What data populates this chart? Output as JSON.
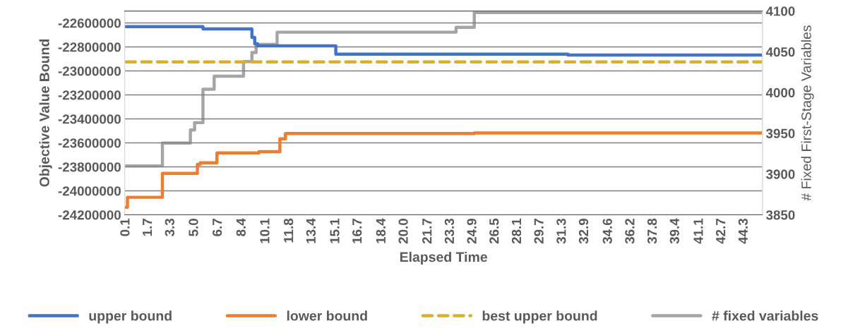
{
  "chart_data": {
    "type": "step",
    "xlabel": "Elapsed Time",
    "ylabel": "Objective Value Bound",
    "y2label": "# Fixed First-Stage Variables",
    "xlim": [
      0,
      45.6
    ],
    "xticks": [
      0.1,
      1.7,
      3.3,
      {
        "value": 5.0,
        "label": "5.0"
      },
      6.7,
      8.4,
      10.1,
      11.8,
      13.4,
      15.1,
      16.7,
      18.4,
      {
        "value": 20.0,
        "label": "20.0"
      },
      21.7,
      23.3,
      24.9,
      26.5,
      28.1,
      29.7,
      31.3,
      32.9,
      34.6,
      36.2,
      37.8,
      39.4,
      41.1,
      42.7,
      44.3
    ],
    "ylim": [
      -24200000,
      -22500000
    ],
    "yticks": [
      -24200000,
      -24000000,
      -23800000,
      -23600000,
      -23400000,
      -23200000,
      -23000000,
      -22800000,
      -22600000
    ],
    "y2lim": [
      3850,
      4100
    ],
    "y2ticks": [
      3850,
      3900,
      3950,
      4000,
      4050,
      4100
    ],
    "grid": "y",
    "legend": "bottom",
    "marker": "none",
    "series": [
      {
        "name": "upper bound",
        "color": "#4472c4",
        "x": [
          0.1,
          5.6,
          9.1,
          9.3,
          9.5,
          15.1,
          31.7,
          45.6
        ],
        "values": [
          -22630000,
          -22650000,
          -22720000,
          -22773000,
          -22790000,
          -22860000,
          -22867000,
          -22867000
        ]
      },
      {
        "name": "lower bound",
        "color": "#ed7d31",
        "x": [
          0.1,
          0.2,
          2.7,
          5.2,
          5.4,
          6.6,
          9.6,
          11.1,
          11.5,
          25.0,
          45.6
        ],
        "values": [
          -24137000,
          -24054000,
          -23855000,
          -23780000,
          -23766000,
          -23684000,
          -23674000,
          -23566000,
          -23522000,
          -23518000,
          -23513000
        ]
      },
      {
        "name": "best upper bound",
        "color": "#d8b128",
        "type": "line",
        "line_style": "dashed",
        "x": [
          0.1,
          45.6
        ],
        "values": [
          -22925000,
          -22925000
        ]
      },
      {
        "name": "# fixed variables",
        "color": "#a5a5a5",
        "axis": "y2",
        "x": [
          0.1,
          2.7,
          4.7,
          5.0,
          5.6,
          6.4,
          8.5,
          9.1,
          9.4,
          10.9,
          23.7,
          25.0,
          45.6
        ],
        "values": [
          3910,
          3938,
          3954,
          3963,
          4004,
          4020,
          4038,
          4049,
          4059,
          4074,
          4080,
          4098,
          4098
        ]
      }
    ]
  }
}
